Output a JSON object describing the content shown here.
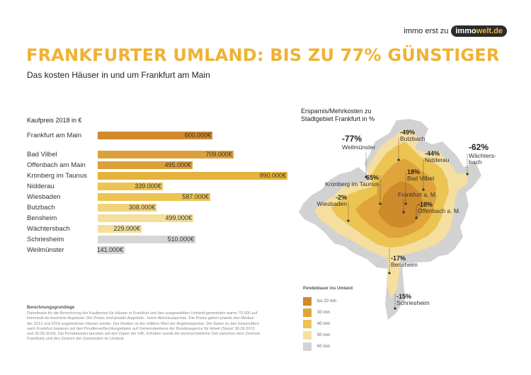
{
  "header": {
    "brand_prefix": "immo erst zu",
    "brand_a": "immo",
    "brand_b": "welt.de",
    "title": "FRANKFURTER UMLAND: BIS ZU 77% GÜNSTIGER",
    "subtitle": "Das kosten Häuser in und um Frankfurt am Main"
  },
  "chart_data": [
    {
      "type": "bar",
      "orientation": "horizontal",
      "title": "Kaufpreis 2018 in €",
      "categories": [
        "Frankfurt am Main",
        "Bad Vilbel",
        "Offenbach am Main",
        "Kronberg im Taunus",
        "Nidderau",
        "Wiesbaden",
        "Butzbach",
        "Bensheim",
        "Wächtersbach",
        "Schriesheim",
        "Weilmünster"
      ],
      "values": [
        600000,
        709000,
        495000,
        990000,
        339000,
        587000,
        308000,
        499000,
        229000,
        510000,
        141000
      ],
      "value_labels": [
        "600.000€",
        "709.000€",
        "495.000€",
        "990.000€",
        "339.000€",
        "587.000€",
        "308.000€",
        "499.000€",
        "229.000€",
        "510.000€",
        "141.000€"
      ],
      "bar_colors": [
        "#cf8a2c",
        "#dca03a",
        "#dca03a",
        "#e4b33c",
        "#ecc452",
        "#ecc452",
        "#f0d37a",
        "#f3de9a",
        "#f3de9a",
        "#d6d6d6",
        "#d6d6d6"
      ]
    }
  ],
  "map": {
    "title_line1": "Ersparnis/Mehrkosten zu",
    "title_line2": "Stadtgebiet Frankfurt in %",
    "labels": [
      {
        "pct": "-77%",
        "name": "Weilmünster"
      },
      {
        "pct": "-49%",
        "name": "Butzbach"
      },
      {
        "pct": "-44%",
        "name": "Nidderau"
      },
      {
        "pct": "-62%",
        "name": "Wächters-\nbach"
      },
      {
        "pct": "65%",
        "name": "Kronberg im Taunus"
      },
      {
        "pct": "18%",
        "name": "Bad Vilbel"
      },
      {
        "pct": "",
        "name": "Frankfurt a. M."
      },
      {
        "pct": "-18%",
        "name": "Offenbach a. M."
      },
      {
        "pct": "-2%",
        "name": "Wiesbaden"
      },
      {
        "pct": "-17%",
        "name": "Bensheim"
      },
      {
        "pct": "-15%",
        "name": "Schriesheim"
      }
    ]
  },
  "legend": {
    "title": "Pendeldauer ins Umland",
    "items": [
      {
        "label": "bis 20 min",
        "color": "#cf8a2c"
      },
      {
        "label": "30 min",
        "color": "#dfa53a"
      },
      {
        "label": "40 min",
        "color": "#ecc452"
      },
      {
        "label": "50 min",
        "color": "#f5dfa0"
      },
      {
        "label": "60 min",
        "color": "#d2d2d2"
      }
    ]
  },
  "notes": {
    "heading": "Berechnungsgrundlage",
    "text": "Datenbasis für die Berechnung der Kaufpreise für Häuser in Frankfurt und den ausgewählten Umland-gemeinden waren 70.000 auf immowelt.de inserierte Angebote. Die Preise sind jeweils Angebots-, keine Abschlusspreise. Die Preise geben jeweils den Median der 2013 und 2018 angebotenen Häuser wieder. Der Median ist der mittlere Wert der Angebotspreise. Die Daten zu den Einpendlern nach Frankfurt basieren auf den Pendlerverflechtungsdaten auf Gemeindeebene der Bundesagentur für Arbeit (Stand: 30.06.2013 und 30.06.2018). Die Pendelzeiten beruhen auf den Daten der GfK. Erhoben wurde die durchschnittliche Zeit zwischen dem Zentrum Frankfurts und den Zentren der Gemeinden im Umland."
  }
}
